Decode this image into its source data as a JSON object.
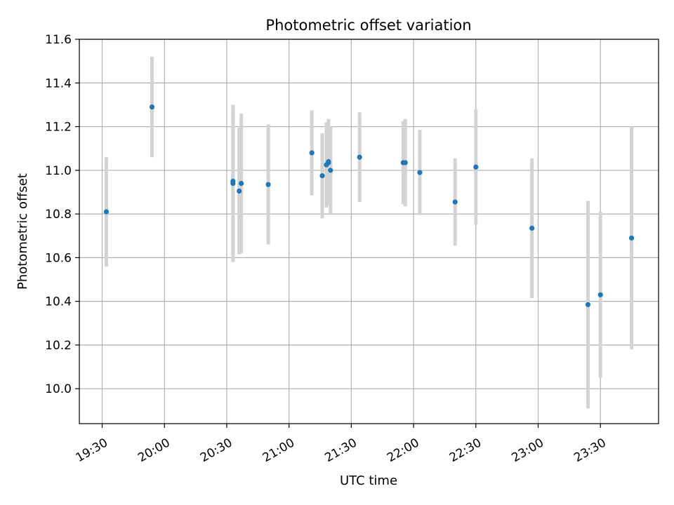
{
  "chart_data": {
    "type": "scatter",
    "title": "Photometric offset variation",
    "xlabel": "UTC time",
    "ylabel": "Photometric offset",
    "x_axis_kind": "time",
    "xlim": [
      "19:19",
      "23:58"
    ],
    "ylim": [
      9.84,
      11.6
    ],
    "x_ticks": [
      "19:30",
      "20:00",
      "20:30",
      "21:00",
      "21:30",
      "22:00",
      "22:30",
      "23:00",
      "23:30"
    ],
    "y_ticks": [
      10.0,
      10.2,
      10.4,
      10.6,
      10.8,
      11.0,
      11.2,
      11.4,
      11.6
    ],
    "y_tick_labels": [
      "10.0",
      "10.2",
      "10.4",
      "10.6",
      "10.8",
      "11.0",
      "11.2",
      "11.4",
      "11.6"
    ],
    "grid": true,
    "legend": "none",
    "colors": {
      "marker": "#1f77b4",
      "errorbar": "#d3d3d3",
      "grid": "#b0b0b0"
    },
    "points": [
      {
        "time": "19:32",
        "y": 10.81,
        "yerr": 0.25
      },
      {
        "time": "19:54",
        "y": 11.29,
        "yerr": 0.23
      },
      {
        "time": "20:33",
        "y": 10.94,
        "yerr": 0.36
      },
      {
        "time": "20:33",
        "y": 10.95,
        "yerr": 0.33
      },
      {
        "time": "20:36",
        "y": 10.905,
        "yerr": 0.29
      },
      {
        "time": "20:37",
        "y": 10.94,
        "yerr": 0.32
      },
      {
        "time": "20:50",
        "y": 10.935,
        "yerr": 0.275
      },
      {
        "time": "21:11",
        "y": 11.08,
        "yerr": 0.195
      },
      {
        "time": "21:16",
        "y": 10.975,
        "yerr": 0.195
      },
      {
        "time": "21:18",
        "y": 11.025,
        "yerr": 0.195
      },
      {
        "time": "21:19",
        "y": 11.035,
        "yerr": 0.195
      },
      {
        "time": "21:19",
        "y": 11.04,
        "yerr": 0.195
      },
      {
        "time": "21:20",
        "y": 11.0,
        "yerr": 0.2
      },
      {
        "time": "21:34",
        "y": 11.06,
        "yerr": 0.205
      },
      {
        "time": "21:55",
        "y": 11.035,
        "yerr": 0.19
      },
      {
        "time": "21:56",
        "y": 11.035,
        "yerr": 0.2
      },
      {
        "time": "22:03",
        "y": 10.99,
        "yerr": 0.195
      },
      {
        "time": "22:20",
        "y": 10.855,
        "yerr": 0.2
      },
      {
        "time": "22:30",
        "y": 11.015,
        "yerr": 0.265
      },
      {
        "time": "22:57",
        "y": 10.735,
        "yerr": 0.32
      },
      {
        "time": "23:24",
        "y": 10.385,
        "yerr": 0.475
      },
      {
        "time": "23:30",
        "y": 10.43,
        "yerr": 0.38
      },
      {
        "time": "23:45",
        "y": 10.69,
        "yerr": 0.51
      }
    ]
  }
}
